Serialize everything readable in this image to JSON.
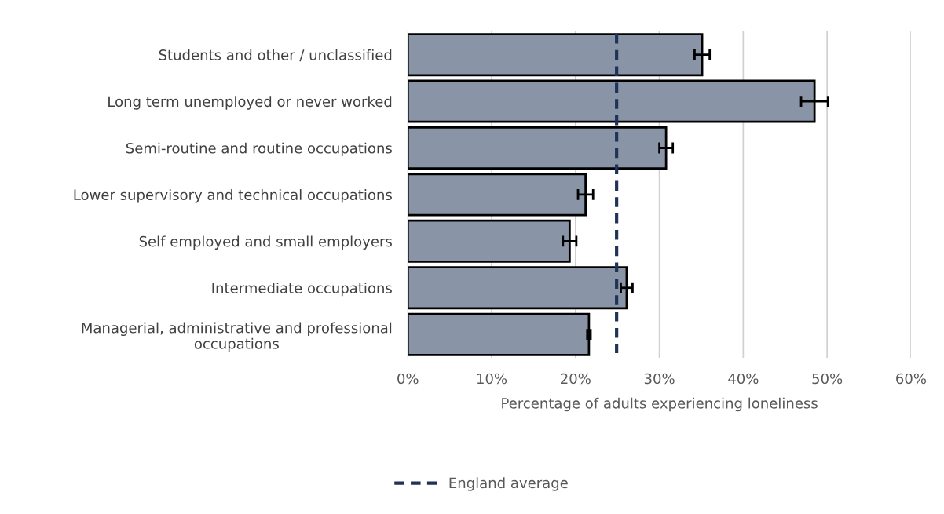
{
  "chart_data": {
    "type": "bar",
    "orientation": "horizontal",
    "categories": [
      "Students and other / unclassified",
      "Long term unemployed or never worked",
      "Semi-routine and routine occupations",
      "Lower supervisory and technical occupations",
      "Self employed and small employers",
      "Intermediate occupations",
      "Managerial, administrative and professional occupations"
    ],
    "values": [
      35.1,
      48.5,
      30.8,
      21.2,
      19.3,
      26.1,
      21.6
    ],
    "errors": [
      0.9,
      1.6,
      0.8,
      0.9,
      0.8,
      0.7,
      0.2
    ],
    "color": "#8994a6",
    "xlabel": "Percentage of adults experiencing loneliness",
    "xlim": [
      0,
      60
    ],
    "xticks": [
      {
        "value": 0,
        "label": "0%"
      },
      {
        "value": 10,
        "label": "10%"
      },
      {
        "value": 20,
        "label": "20%"
      },
      {
        "value": 30,
        "label": "30%"
      },
      {
        "value": 40,
        "label": "40%"
      },
      {
        "value": 50,
        "label": "50%"
      },
      {
        "value": 60,
        "label": "60%"
      }
    ],
    "ref_lines": [
      {
        "axis": "x",
        "value": 24.9,
        "label": "England average",
        "color": "#1f3357",
        "line_style": "dashed"
      }
    ],
    "grid": "x",
    "legend": "bottom"
  }
}
